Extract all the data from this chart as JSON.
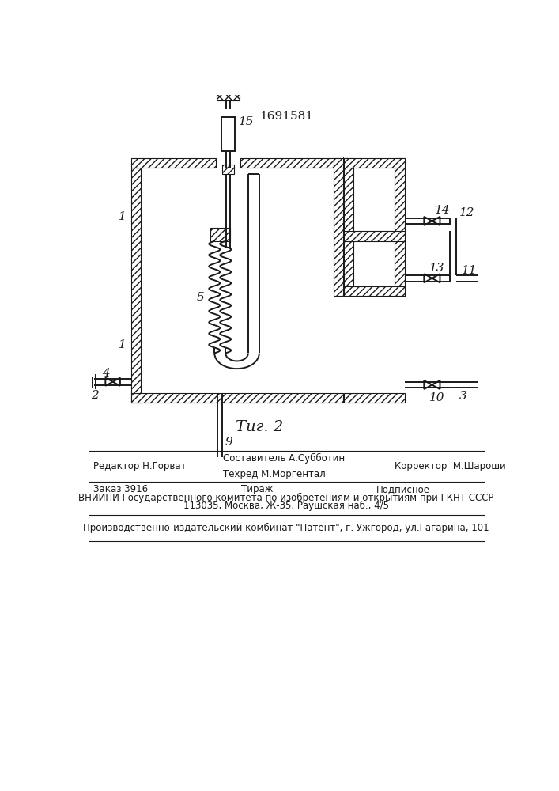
{
  "title_number": "1691581",
  "fig_caption": "Τиг. 2",
  "background_color": "#ffffff",
  "line_color": "#1a1a1a",
  "footer_editor": "Редактор Н.Горват",
  "footer_comp": "Составитель А.Субботин",
  "footer_tech": "Техред М.Моргентал",
  "footer_corr": "Корректор  М.Шароши",
  "footer_order": "Заказ 3916",
  "footer_tirazh": "Тираж",
  "footer_podp": "Подписное",
  "footer_inst": "ВНИИПИ Государственного комитета по изобретениям и открытиям при ГКНТ СССР",
  "footer_addr": "113035, Москва, Ж-35, Раушская наб., 4/5",
  "footer_prod": "Производственно-издательский комбинат \"Патент\", г. Ужгород, ул.Гагарина, 101"
}
